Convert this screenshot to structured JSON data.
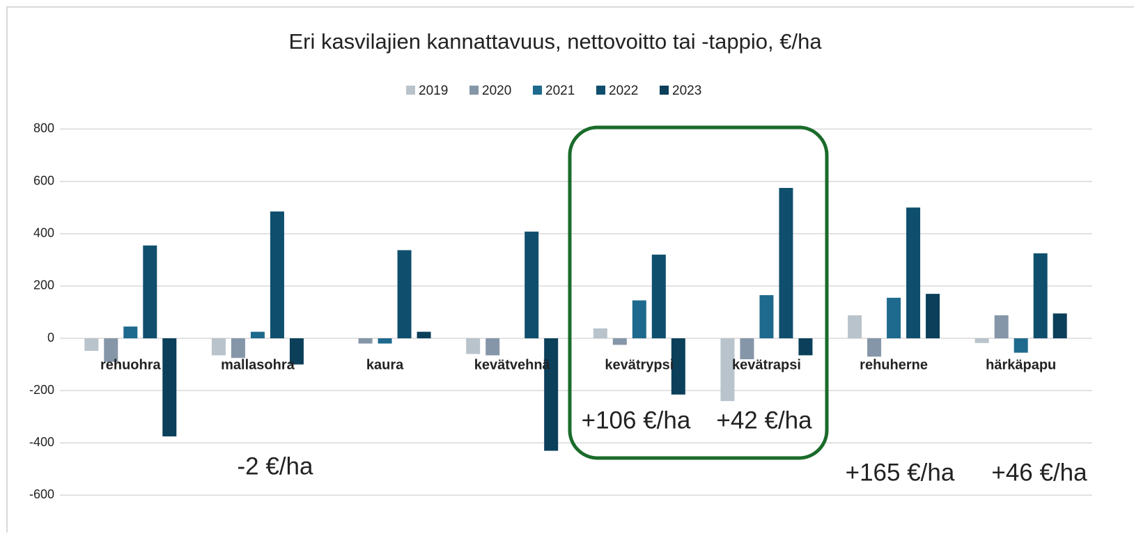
{
  "chart_data": {
    "type": "bar",
    "title": "Eri kasvilajien kannattavuus, nettovoitto tai -tappio, €/ha",
    "categories": [
      "rehuohra",
      "mallasohra",
      "kaura",
      "kevätvehnä",
      "kevätrypsi",
      "kevätrapsi",
      "rehuherne",
      "härkäpapu"
    ],
    "series": [
      {
        "name": "2019",
        "color": "#b9c3cb",
        "values": [
          -48,
          -65,
          0,
          -60,
          38,
          -240,
          88,
          -18
        ]
      },
      {
        "name": "2020",
        "color": "#8596a8",
        "values": [
          -90,
          -75,
          -20,
          -65,
          -25,
          -80,
          -70,
          88
        ]
      },
      {
        "name": "2021",
        "color": "#1e6a8e",
        "values": [
          45,
          25,
          -20,
          0,
          145,
          165,
          155,
          -55
        ]
      },
      {
        "name": "2022",
        "color": "#0f4f6d",
        "values": [
          355,
          485,
          337,
          408,
          320,
          575,
          500,
          325
        ]
      },
      {
        "name": "2023",
        "color": "#0b3f5a",
        "values": [
          -375,
          -100,
          25,
          -430,
          -215,
          -65,
          170,
          95
        ]
      }
    ],
    "ylim": [
      -650,
      830
    ],
    "yticks": [
      -600,
      -400,
      -200,
      0,
      200,
      400,
      600,
      800
    ],
    "grid": true,
    "legend": "top",
    "annotations": [
      "-2 €/ha",
      "+106 €/ha",
      "+42 €/ha",
      "+165 €/ha",
      "+46 €/ha"
    ]
  }
}
